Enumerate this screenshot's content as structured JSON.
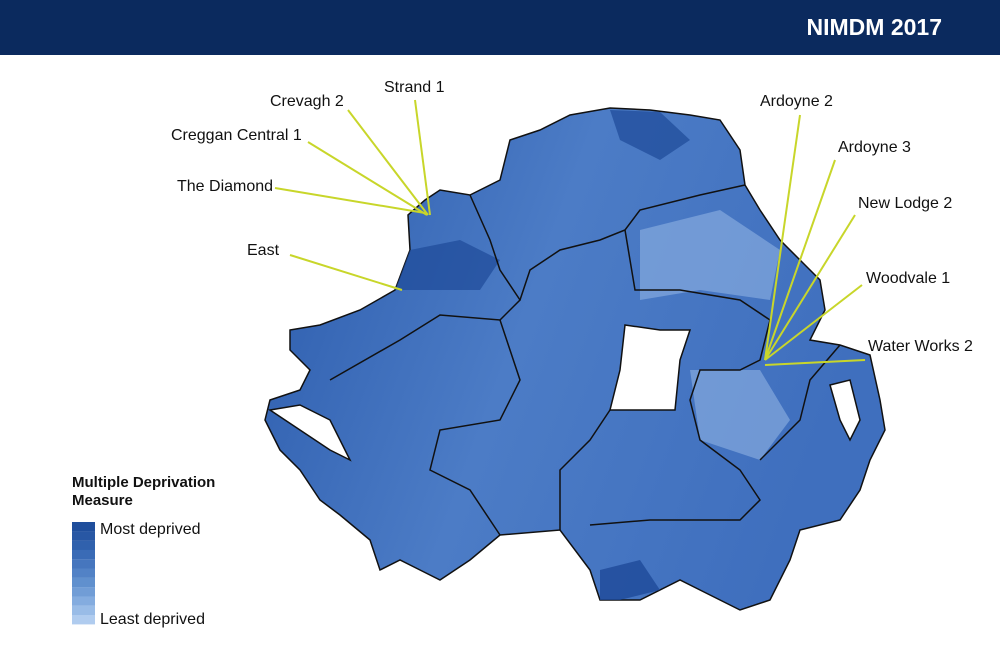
{
  "header": {
    "title": "NIMDM 2017"
  },
  "labels": [
    {
      "text": "Strand 1"
    },
    {
      "text": "Crevagh 2"
    },
    {
      "text": "Creggan Central 1"
    },
    {
      "text": "The Diamond"
    },
    {
      "text": "East"
    },
    {
      "text": "Ardoyne 2"
    },
    {
      "text": "Ardoyne 3"
    },
    {
      "text": "New Lodge 2"
    },
    {
      "text": "Woodvale 1"
    },
    {
      "text": "Water Works 2"
    }
  ],
  "legend": {
    "title": "Multiple Deprivation Measure",
    "most": "Most deprived",
    "least": "Least deprived"
  }
}
